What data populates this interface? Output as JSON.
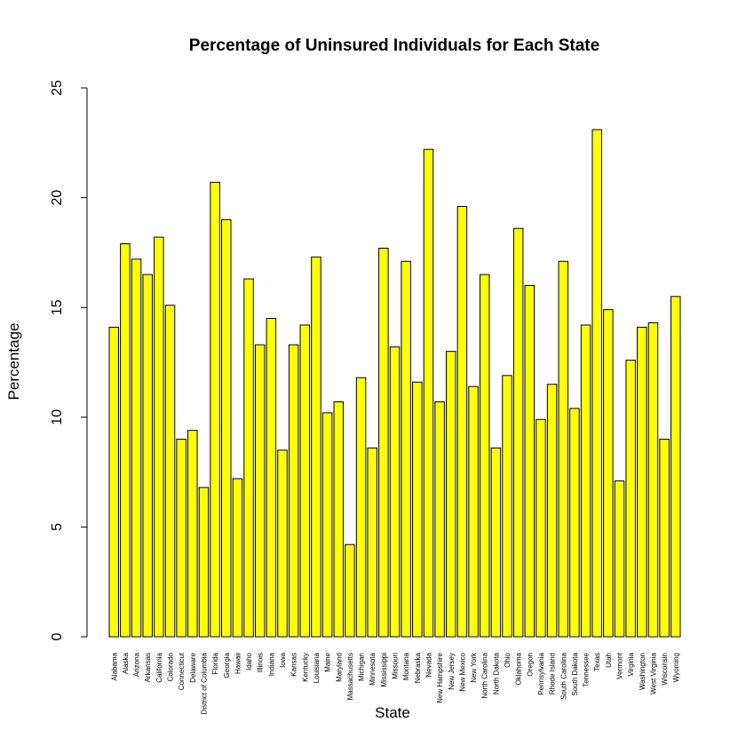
{
  "chart_data": {
    "type": "bar",
    "title": "Percentage of Uninsured Individuals for Each State",
    "xlabel": "State",
    "ylabel": "Percentage",
    "ylim": [
      0,
      25
    ],
    "yticks": [
      0,
      5,
      10,
      15,
      20,
      25
    ],
    "bar_color": "#ffff00",
    "bar_border_color": "#000000",
    "grid": false,
    "categories": [
      "Alabama",
      "Alaska",
      "Arizona",
      "Arkansas",
      "California",
      "Colorado",
      "Connecticut",
      "Delaware",
      "District of Columbia",
      "Florida",
      "Georgia",
      "Hawaii",
      "Idaho",
      "Illinois",
      "Indiana",
      "Iowa",
      "Kansas",
      "Kentucky",
      "Louisiana",
      "Maine",
      "Maryland",
      "Massachusetts",
      "Michigan",
      "Minnesota",
      "Mississippi",
      "Missouri",
      "Montana",
      "Nebraska",
      "Nevada",
      "New Hampshire",
      "New Jersey",
      "New Mexico",
      "New York",
      "North Carolina",
      "North Dakota",
      "Ohio",
      "Oklahoma",
      "Oregon",
      "Pennsylvania",
      "Rhode Island",
      "South Carolina",
      "South Dakota",
      "Tennessee",
      "Texas",
      "Utah",
      "Vermont",
      "Virginia",
      "Washington",
      "West Virginia",
      "Wisconsin",
      "Wyoming"
    ],
    "values": [
      14.1,
      17.9,
      17.2,
      16.5,
      18.2,
      15.1,
      9.0,
      9.4,
      6.8,
      20.7,
      19.0,
      7.2,
      16.3,
      13.3,
      14.5,
      8.5,
      13.3,
      14.2,
      17.3,
      10.2,
      10.7,
      4.2,
      11.8,
      8.6,
      17.7,
      13.2,
      17.1,
      11.6,
      22.2,
      10.7,
      13.0,
      19.6,
      11.4,
      16.5,
      8.6,
      11.9,
      18.6,
      16.0,
      9.9,
      11.5,
      17.1,
      10.4,
      14.2,
      23.1,
      14.9,
      7.1,
      12.6,
      14.1,
      14.3,
      9.0,
      15.5
    ]
  }
}
